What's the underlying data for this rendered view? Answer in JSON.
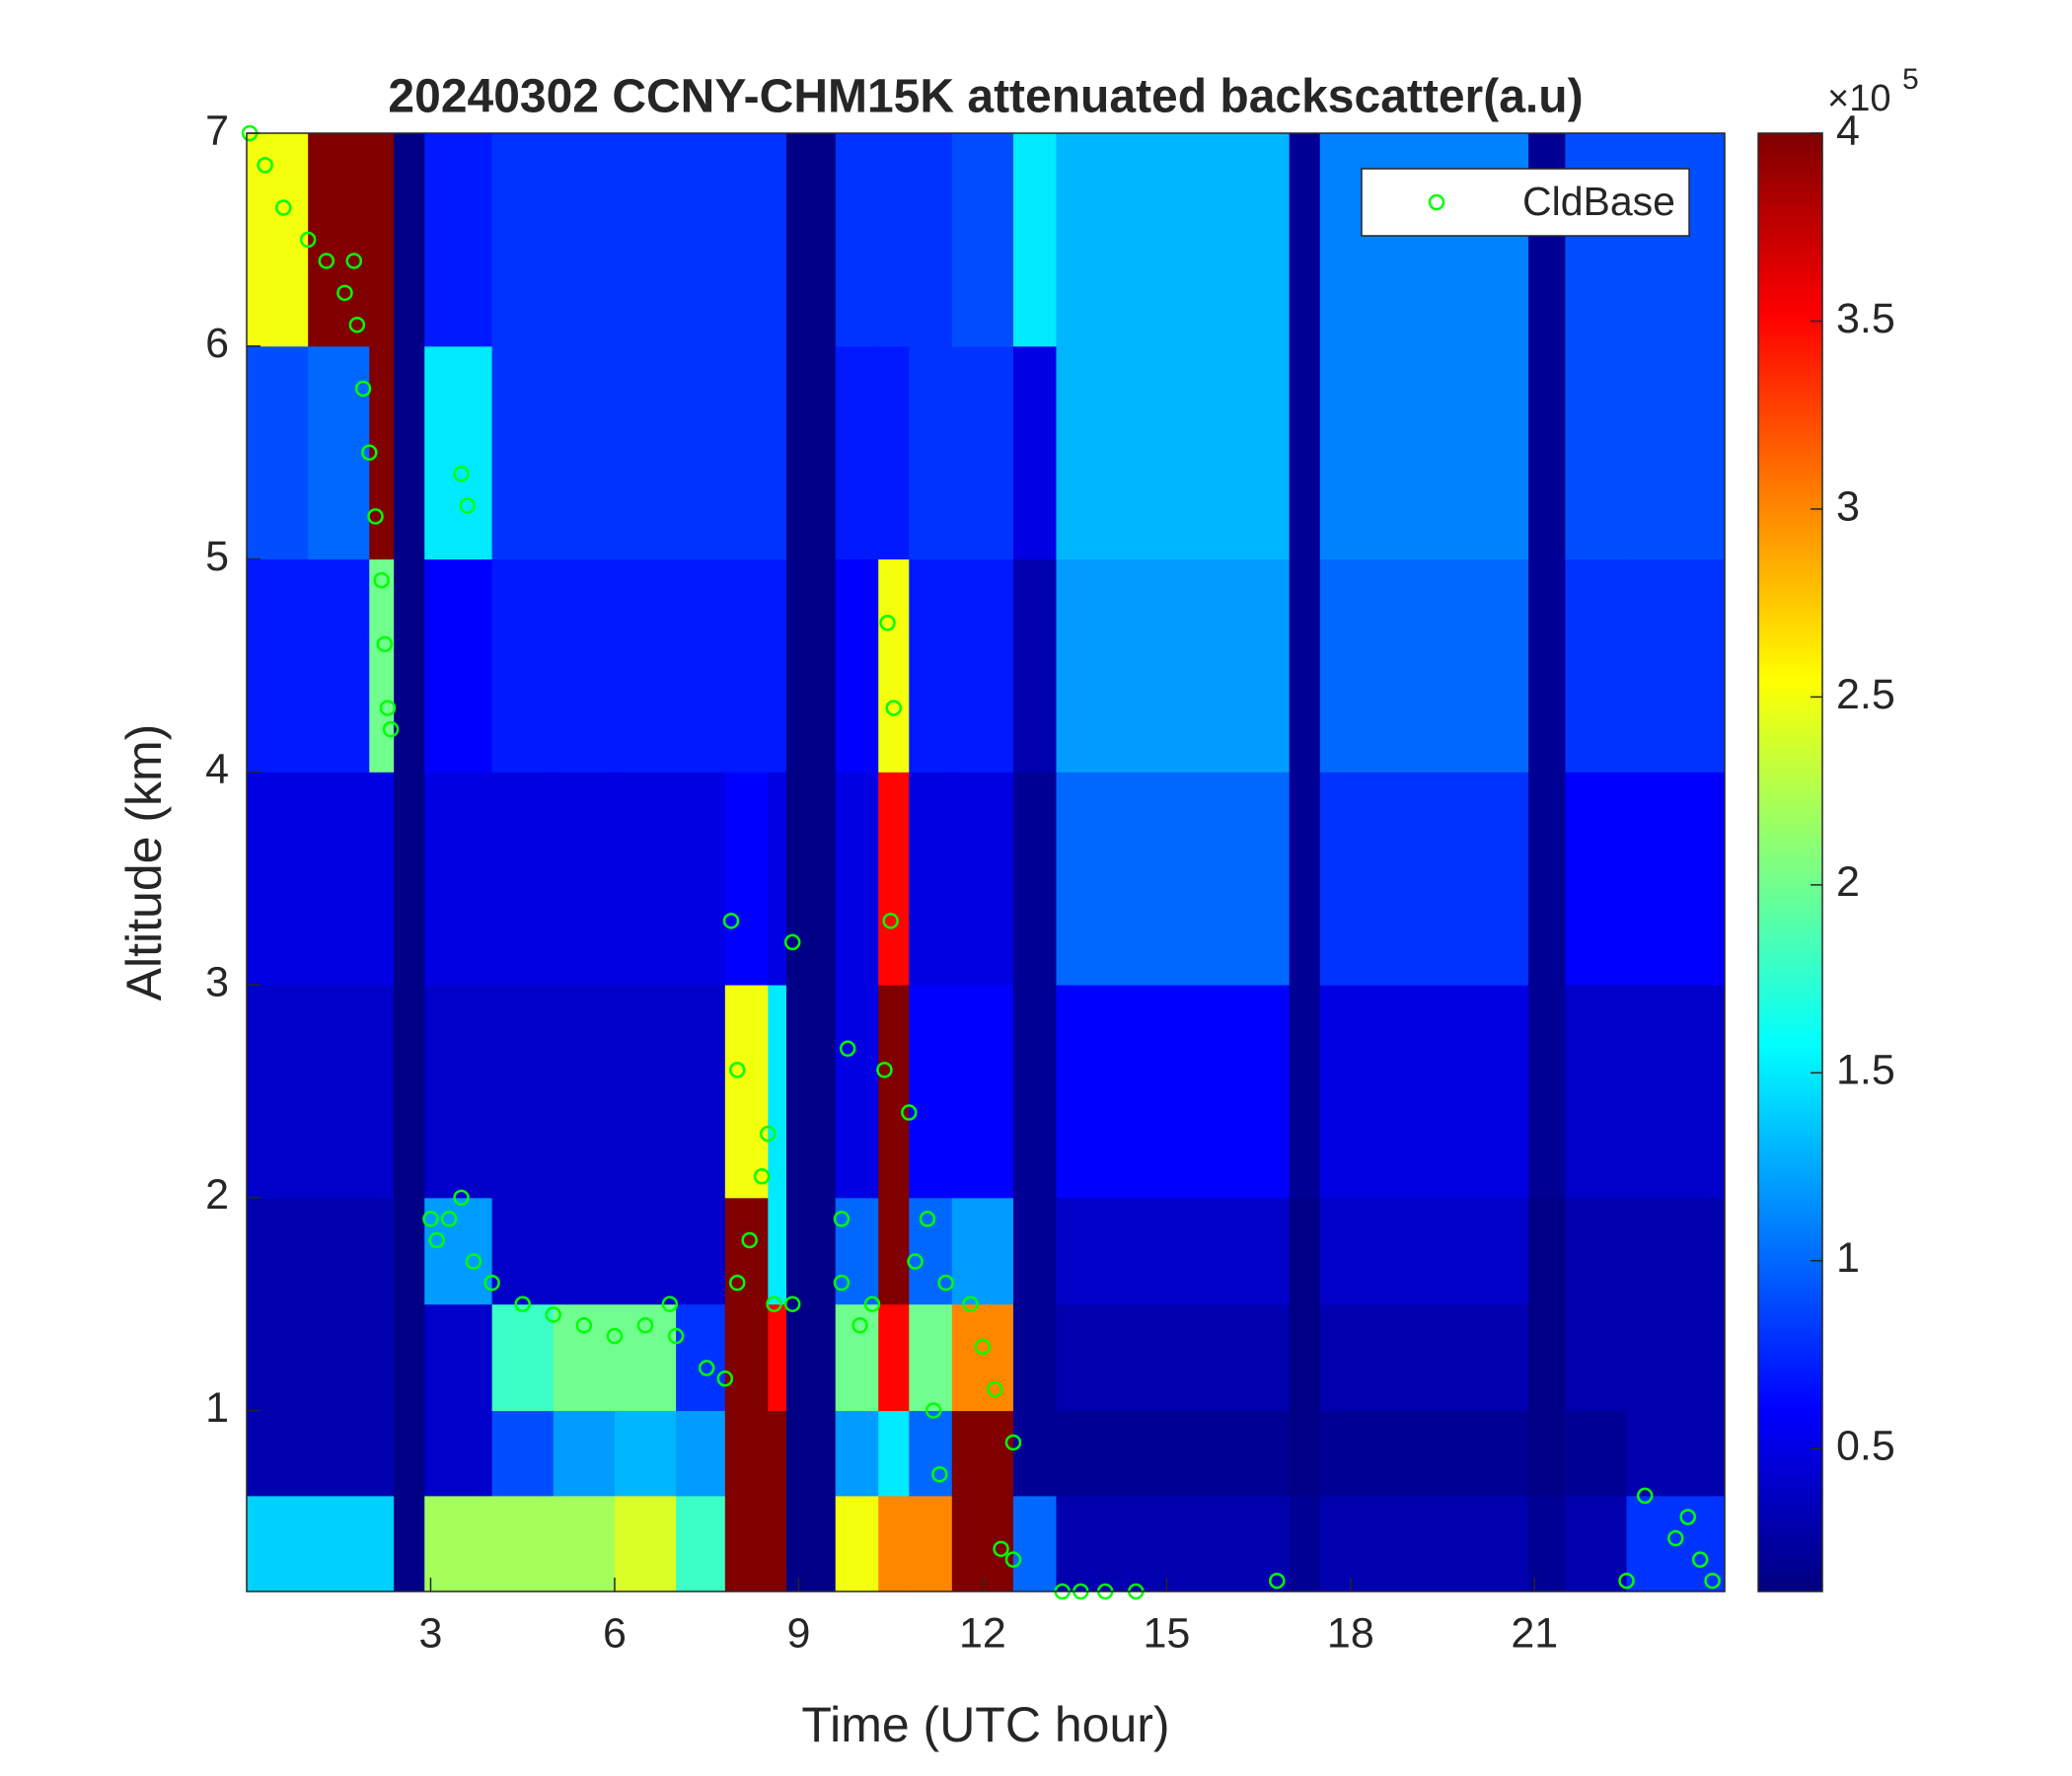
{
  "chart_data": {
    "type": "heatmap",
    "title": "20240302 CCNY-CHM15K attenuated backscatter(a.u)",
    "xlabel": "Time (UTC hour)",
    "ylabel": "Altitude (km)",
    "xlim": [
      0,
      24.1
    ],
    "ylim": [
      0.15,
      7
    ],
    "xticks": [
      3,
      6,
      9,
      12,
      15,
      18,
      21
    ],
    "yticks": [
      1,
      2,
      3,
      4,
      5,
      6,
      7
    ],
    "colormap": "jet",
    "clim": [
      0.12,
      4
    ],
    "cticks": [
      0.5,
      1,
      1.5,
      2,
      2.5,
      3,
      3.5,
      4
    ],
    "colorbar_multiplier": {
      "base": "×10",
      "exponent": "5"
    },
    "xbins": [
      0,
      1,
      2,
      2.4,
      2.9,
      4,
      5,
      6,
      7,
      7.8,
      8.5,
      8.8,
      9.6,
      10.3,
      10.8,
      11.5,
      12.5,
      13.2,
      15,
      17,
      17.5,
      19,
      20.9,
      21.5,
      22.5,
      24.1
    ],
    "ybins": [
      0.15,
      0.6,
      1,
      1.5,
      2,
      3,
      4,
      5,
      6,
      7
    ],
    "values": [
      [
        1.4,
        0.3,
        0.3,
        0.3,
        0.4,
        0.5,
        0.7,
        0.9,
        2.5
      ],
      [
        1.4,
        0.3,
        0.3,
        0.3,
        0.4,
        0.5,
        0.7,
        1.0,
        4
      ],
      [
        1.4,
        0.3,
        0.3,
        0.3,
        0.4,
        0.5,
        2.0,
        4,
        4
      ],
      [
        0.15,
        0.15,
        0.15,
        0.15,
        0.15,
        0.15,
        0.15,
        0.15,
        0.15
      ],
      [
        2.2,
        0.4,
        0.4,
        1.2,
        0.4,
        0.5,
        0.6,
        1.5,
        0.7
      ],
      [
        2.2,
        0.9,
        1.8,
        0.4,
        0.4,
        0.5,
        0.7,
        0.8,
        0.8
      ],
      [
        2.2,
        1.2,
        2.0,
        0.4,
        0.4,
        0.5,
        0.7,
        0.8,
        0.8
      ],
      [
        2.4,
        1.3,
        2.0,
        0.4,
        0.4,
        0.5,
        0.7,
        0.8,
        0.8
      ],
      [
        1.8,
        1.2,
        0.8,
        0.4,
        0.4,
        0.5,
        0.7,
        0.8,
        0.8
      ],
      [
        4,
        4,
        4,
        4,
        2.5,
        0.6,
        0.7,
        0.8,
        0.8
      ],
      [
        4,
        4,
        3.5,
        1.5,
        1.5,
        0.5,
        0.7,
        0.8,
        0.8
      ],
      [
        0.15,
        0.15,
        0.15,
        0.15,
        0.15,
        0.15,
        0.15,
        0.15,
        0.15
      ],
      [
        2.5,
        1.2,
        2.0,
        1.0,
        0.5,
        0.5,
        0.6,
        0.7,
        0.8
      ],
      [
        3.0,
        1.5,
        3.5,
        4,
        4,
        3.5,
        2.5,
        0.7,
        0.8
      ],
      [
        3.0,
        1.0,
        2.0,
        1.0,
        0.6,
        0.5,
        0.7,
        0.8,
        0.8
      ],
      [
        4,
        4,
        3,
        1.2,
        0.6,
        0.5,
        0.7,
        0.8,
        0.9
      ],
      [
        1.0,
        0.2,
        0.2,
        0.2,
        0.2,
        0.2,
        0.3,
        0.5,
        1.5
      ],
      [
        0.3,
        0.2,
        0.3,
        0.4,
        0.6,
        1.0,
        1.2,
        1.3,
        1.3
      ],
      [
        0.3,
        0.2,
        0.3,
        0.4,
        0.6,
        1.0,
        1.2,
        1.3,
        1.3
      ],
      [
        0.2,
        0.15,
        0.15,
        0.15,
        0.2,
        0.2,
        0.2,
        0.2,
        0.2
      ],
      [
        0.3,
        0.2,
        0.3,
        0.4,
        0.5,
        0.8,
        1.0,
        1.1,
        1.1
      ],
      [
        0.3,
        0.2,
        0.3,
        0.4,
        0.5,
        0.8,
        1.0,
        1.1,
        1.1
      ],
      [
        0.2,
        0.15,
        0.15,
        0.15,
        0.2,
        0.2,
        0.2,
        0.2,
        0.2
      ],
      [
        0.3,
        0.2,
        0.3,
        0.3,
        0.4,
        0.6,
        0.8,
        0.9,
        0.9
      ],
      [
        0.8,
        0.3,
        0.3,
        0.3,
        0.4,
        0.6,
        0.8,
        0.9,
        0.9
      ]
    ],
    "scatter": {
      "name": "CldBase",
      "color": "#00ff00",
      "x": [
        0.05,
        0.3,
        0.6,
        1.0,
        1.3,
        1.6,
        1.75,
        1.8,
        1.9,
        2.0,
        2.1,
        2.2,
        2.25,
        2.3,
        2.35,
        3.0,
        3.1,
        3.3,
        3.5,
        3.5,
        3.6,
        3.7,
        4.0,
        4.5,
        5.0,
        5.5,
        6.0,
        6.5,
        6.9,
        7.0,
        7.5,
        7.8,
        8.0,
        8.0,
        7.9,
        8.2,
        8.4,
        8.5,
        8.6,
        8.9,
        8.9,
        9.7,
        9.8,
        9.7,
        10.0,
        10.2,
        10.4,
        10.5,
        10.45,
        10.55,
        10.8,
        10.9,
        11.1,
        11.2,
        11.3,
        11.4,
        11.8,
        12.0,
        12.2,
        12.3,
        12.5,
        12.5,
        13.3,
        13.6,
        14.0,
        14.5,
        16.8,
        22.5,
        22.8,
        23.3,
        23.5,
        23.7,
        23.9
      ],
      "y": [
        7.0,
        6.85,
        6.65,
        6.5,
        6.4,
        6.25,
        6.4,
        6.1,
        5.8,
        5.5,
        5.2,
        4.9,
        4.6,
        4.3,
        4.2,
        1.9,
        1.8,
        1.9,
        2.0,
        5.4,
        5.25,
        1.7,
        1.6,
        1.5,
        1.45,
        1.4,
        1.35,
        1.4,
        1.5,
        1.35,
        1.2,
        1.15,
        1.6,
        2.6,
        3.3,
        1.8,
        2.1,
        2.3,
        1.5,
        1.5,
        3.2,
        1.6,
        2.7,
        1.9,
        1.4,
        1.5,
        2.6,
        3.3,
        4.7,
        4.3,
        2.4,
        1.7,
        1.9,
        1.0,
        0.7,
        1.6,
        1.5,
        1.3,
        1.1,
        0.35,
        0.3,
        0.85,
        0.15,
        0.15,
        0.15,
        0.15,
        0.2,
        0.2,
        0.6,
        0.4,
        0.5,
        0.3,
        0.2
      ]
    },
    "legend_position": "upper right"
  }
}
